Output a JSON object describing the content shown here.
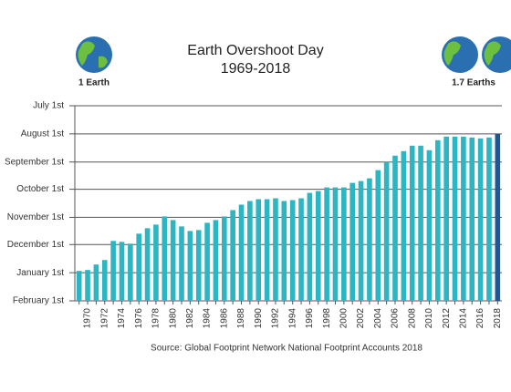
{
  "chart_data": {
    "type": "bar",
    "title": "Earth Overshoot Day",
    "subtitle": "1969-2018",
    "left_label": "1 Earth",
    "right_label": "1.7 Earths",
    "source": "Source: Global Footprint Network National Footprint Accounts 2018",
    "categories": [
      null,
      "1970",
      null,
      "1972",
      null,
      "1974",
      null,
      "1976",
      null,
      "1978",
      null,
      "1980",
      null,
      "1982",
      null,
      "1984",
      null,
      "1986",
      null,
      "1988",
      null,
      "1990",
      null,
      "1992",
      null,
      "1994",
      null,
      "1996",
      null,
      "1998",
      null,
      "2000",
      null,
      "2002",
      null,
      "2004",
      null,
      "2006",
      null,
      "2008",
      null,
      "2010",
      null,
      "2012",
      null,
      "2014",
      null,
      "2016",
      null,
      "2018"
    ],
    "values": [
      364,
      363,
      357,
      352,
      331,
      332,
      334,
      323,
      317,
      313,
      304,
      308,
      315,
      320,
      319,
      311,
      308,
      304,
      297,
      291,
      287,
      285,
      285,
      284,
      287,
      286,
      284,
      278,
      276,
      272,
      272,
      272,
      267,
      265,
      262,
      253,
      244,
      237,
      232,
      226,
      226,
      231,
      220,
      216,
      216,
      216,
      217,
      218,
      217,
      213
    ],
    "colors": [
      "#2cb5c2",
      "#2cb5c2",
      "#2cb5c2",
      "#2cb5c2",
      "#2cb5c2",
      "#2cb5c2",
      "#2cb5c2",
      "#2cb5c2",
      "#2cb5c2",
      "#2cb5c2",
      "#2cb5c2",
      "#2cb5c2",
      "#2cb5c2",
      "#2cb5c2",
      "#2cb5c2",
      "#2cb5c2",
      "#2cb5c2",
      "#2cb5c2",
      "#2cb5c2",
      "#2cb5c2",
      "#2cb5c2",
      "#2cb5c2",
      "#2cb5c2",
      "#2cb5c2",
      "#2cb5c2",
      "#2cb5c2",
      "#2cb5c2",
      "#2cb5c2",
      "#2cb5c2",
      "#2cb5c2",
      "#2cb5c2",
      "#2cb5c2",
      "#2cb5c2",
      "#2cb5c2",
      "#2cb5c2",
      "#2cb5c2",
      "#2cb5c2",
      "#2cb5c2",
      "#2cb5c2",
      "#2cb5c2",
      "#2cb5c2",
      "#2cb5c2",
      "#2cb5c2",
      "#2cb5c2",
      "#2cb5c2",
      "#2cb5c2",
      "#2cb5c2",
      "#2cb5c2",
      "#2cb5c2",
      "#1d5896"
    ],
    "ylim": [
      397,
      182
    ],
    "yticks": [
      {
        "value": 182,
        "label": "July 1st"
      },
      {
        "value": 213,
        "label": "August 1st"
      },
      {
        "value": 244,
        "label": "September 1st"
      },
      {
        "value": 274,
        "label": "October 1st"
      },
      {
        "value": 305,
        "label": "November 1st"
      },
      {
        "value": 335,
        "label": "December 1st"
      },
      {
        "value": 366,
        "label": "January 1st"
      },
      {
        "value": 397,
        "label": "February 1st"
      }
    ],
    "grid": true
  }
}
